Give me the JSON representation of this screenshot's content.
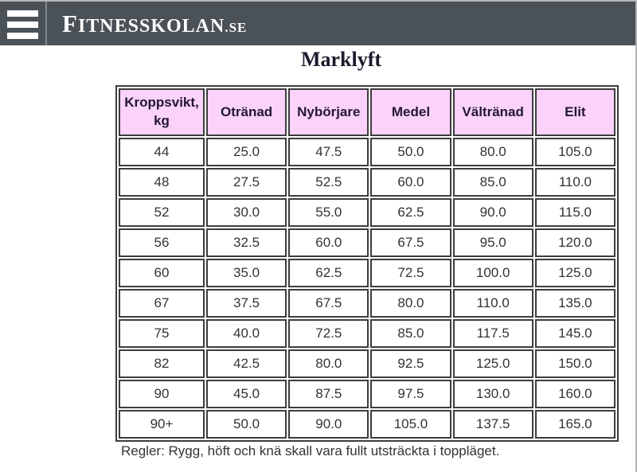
{
  "header": {
    "menu_icon": "hamburger-icon",
    "logo": {
      "first_letter": "F",
      "rest": "ITNESSKOLAN",
      "tld": ".SE"
    }
  },
  "page": {
    "title": "Marklyft",
    "footer_note": "Regler: Rygg, höft och knä skall vara fullt utsträckta i toppläget."
  },
  "table": {
    "columns": [
      "Kroppsvikt, kg",
      "Otränad",
      "Nybörjare",
      "Medel",
      "Vältränad",
      "Elit"
    ],
    "rows": [
      [
        "44",
        "25.0",
        "47.5",
        "50.0",
        "80.0",
        "105.0"
      ],
      [
        "48",
        "27.5",
        "52.5",
        "60.0",
        "85.0",
        "110.0"
      ],
      [
        "52",
        "30.0",
        "55.0",
        "62.5",
        "90.0",
        "115.0"
      ],
      [
        "56",
        "32.5",
        "60.0",
        "67.5",
        "95.0",
        "120.0"
      ],
      [
        "60",
        "35.0",
        "62.5",
        "72.5",
        "100.0",
        "125.0"
      ],
      [
        "67",
        "37.5",
        "67.5",
        "80.0",
        "110.0",
        "135.0"
      ],
      [
        "75",
        "40.0",
        "72.5",
        "85.0",
        "117.5",
        "145.0"
      ],
      [
        "82",
        "42.5",
        "80.0",
        "92.5",
        "125.0",
        "150.0"
      ],
      [
        "90",
        "45.0",
        "87.5",
        "97.5",
        "130.0",
        "160.0"
      ],
      [
        "90+",
        "50.0",
        "90.0",
        "105.0",
        "137.5",
        "165.0"
      ]
    ]
  },
  "colors": {
    "header_bar": "#4a5157",
    "header_divider": "#83898e",
    "table_header_bg": "#fad2fa",
    "table_border": "#3d3d3d",
    "header_text": "#231733",
    "cell_text": "#333333",
    "title_text": "#1b1b2c"
  }
}
